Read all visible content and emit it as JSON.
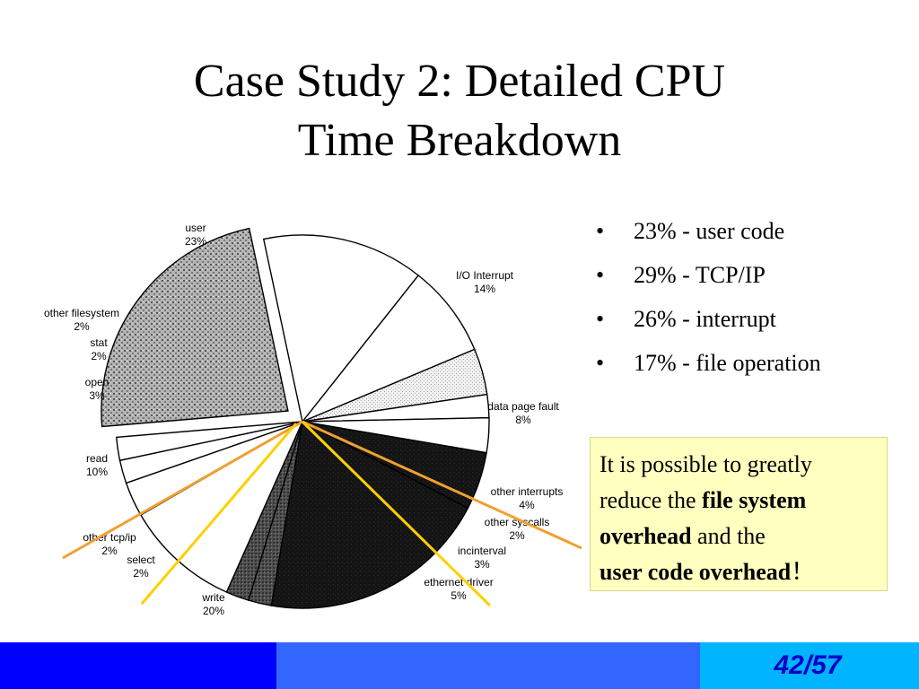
{
  "slide": {
    "title_line1": "Case Study 2: Detailed CPU",
    "title_line2": "Time Breakdown",
    "page_number": "42/57"
  },
  "bullets": [
    "23% - user code",
    "29% - TCP/IP",
    "26% - interrupt",
    "17% - file operation"
  ],
  "note": {
    "part1": "It is possible to greatly reduce the ",
    "bold1": "file system overhead",
    "part2": " and the ",
    "bold2": "user code overhead",
    "part3": "！"
  },
  "chart_data": {
    "type": "pie",
    "title": "",
    "slices": [
      {
        "name": "user",
        "label": "23%",
        "value": 23,
        "pattern": "dotted-gray",
        "exploded": true
      },
      {
        "name": "I/O Interrupt",
        "label": "14%",
        "value": 14,
        "pattern": "white"
      },
      {
        "name": "data page fault",
        "label": "8%",
        "value": 8,
        "pattern": "white"
      },
      {
        "name": "other interrupts",
        "label": "4%",
        "value": 4,
        "pattern": "light-stipple"
      },
      {
        "name": "other syscalls",
        "label": "2%",
        "value": 2,
        "pattern": "white"
      },
      {
        "name": "incinterval",
        "label": "3%",
        "value": 3,
        "pattern": "white"
      },
      {
        "name": "ethernet driver",
        "label": "5%",
        "value": 5,
        "pattern": "black"
      },
      {
        "name": "write",
        "label": "20%",
        "value": 20,
        "pattern": "black"
      },
      {
        "name": "select",
        "label": "2%",
        "value": 2,
        "pattern": "dark-gray"
      },
      {
        "name": "other tcp/ip",
        "label": "2%",
        "value": 2,
        "pattern": "dark-gray"
      },
      {
        "name": "read",
        "label": "10%",
        "value": 10,
        "pattern": "white"
      },
      {
        "name": "open",
        "label": "3%",
        "value": 3,
        "pattern": "white"
      },
      {
        "name": "stat",
        "label": "2%",
        "value": 2,
        "pattern": "white"
      },
      {
        "name": "other filesystem",
        "label": "2%",
        "value": 2,
        "pattern": "white"
      }
    ],
    "highlight_lines_color_orange": "#f0a030",
    "highlight_lines_color_yellow": "#ffd000"
  },
  "colors": {
    "footer_dark": "#0000ff",
    "footer_mid": "#3366ff",
    "footer_light": "#00b4ff",
    "note_background": "#ffffc0",
    "page_number": "#0000c8"
  }
}
